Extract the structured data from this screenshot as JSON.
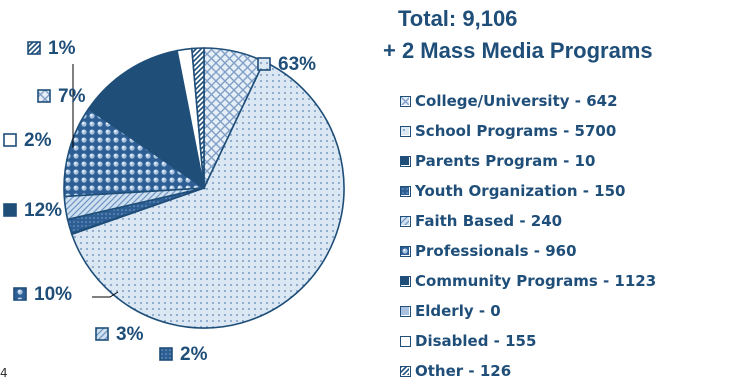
{
  "colors": {
    "accent": "#1f4e79",
    "light": "#dbe8f4",
    "medium": "#4a76a8",
    "dark": "#1f4e79"
  },
  "header": {
    "total": "Total:  9,106",
    "subtitle": "+ 2 Mass Media Programs"
  },
  "legend": [
    "College/University - 642",
    " School Programs - 5700",
    "Parents Program - 10",
    "Youth Organization - 150",
    "Faith Based - 240",
    "Professionals - 960",
    "Community Programs - 1123",
    "Elderly - 0",
    "Disabled - 155",
    "Other - 126"
  ],
  "corner_text": "4",
  "chart_data": {
    "type": "pie",
    "slices": [
      {
        "label": "College/University",
        "value": 642,
        "pct_label": "7%",
        "fill": "pat-cross",
        "swatch": "pat-cross"
      },
      {
        "label": "School Programs",
        "value": 5700,
        "pct_label": "63%",
        "fill": "pat-dots",
        "swatch": "pat-dots"
      },
      {
        "label": "Parents Program",
        "value": 10,
        "pct_label": "",
        "fill": "pat-dark",
        "swatch": "pat-dark"
      },
      {
        "label": "Youth Organization",
        "value": 150,
        "pct_label": "2%",
        "fill": "pat-medium",
        "swatch": "pat-medium"
      },
      {
        "label": "Faith Based",
        "value": 240,
        "pct_label": "3%",
        "fill": "pat-check",
        "swatch": "pat-check"
      },
      {
        "label": "Professionals",
        "value": 960,
        "pct_label": "10%",
        "fill": "pat-sphere",
        "swatch": "pat-sphere"
      },
      {
        "label": "Community Programs",
        "value": 1123,
        "pct_label": "12%",
        "fill": "pat-dark",
        "swatch": "pat-dark"
      },
      {
        "label": "Elderly",
        "value": 0,
        "pct_label": "",
        "fill": "pat-lightblue",
        "swatch": "pat-lightblue"
      },
      {
        "label": "Disabled",
        "value": 155,
        "pct_label": "2%",
        "fill": "pat-white",
        "swatch": "pat-white"
      },
      {
        "label": "Other",
        "value": 126,
        "pct_label": "1%",
        "fill": "pat-diag",
        "swatch": "pat-diag"
      }
    ]
  }
}
